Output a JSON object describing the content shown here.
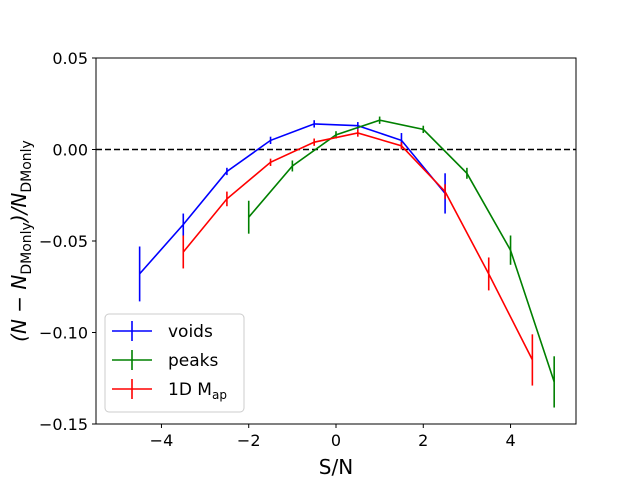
{
  "chart_data": {
    "type": "line",
    "title": "",
    "xlabel": "S/N",
    "ylabel": {
      "prefix": "(N − N",
      "sub1": "DMonly",
      "middle": ")/N",
      "sub2": "DMonly"
    },
    "xlim": [
      -5.5,
      5.5
    ],
    "ylim": [
      -0.15,
      0.05
    ],
    "xticks": [
      -4,
      -2,
      0,
      2,
      4
    ],
    "xtick_labels": [
      "−4",
      "−2",
      "0",
      "2",
      "4"
    ],
    "yticks": [
      0.05,
      0.0,
      -0.05,
      -0.1,
      -0.15
    ],
    "ytick_labels": [
      "0.05",
      "0.00",
      "−0.05",
      "−0.10",
      "−0.15"
    ],
    "reference_line": {
      "y": 0.0,
      "style": "dashed",
      "color": "#000000"
    },
    "legend_position": "lower-left",
    "series": [
      {
        "name": "voids",
        "color": "#0000ff",
        "x": [
          -4.5,
          -3.5,
          -2.5,
          -1.5,
          -0.5,
          0.5,
          1.5,
          2.5
        ],
        "y": [
          -0.068,
          -0.041,
          -0.012,
          0.005,
          0.014,
          0.013,
          0.005,
          -0.024
        ],
        "yerr": [
          0.015,
          0.006,
          0.002,
          0.002,
          0.002,
          0.002,
          0.004,
          0.011
        ]
      },
      {
        "name": "peaks",
        "color": "#008000",
        "x": [
          -2.0,
          -1.0,
          0.0,
          1.0,
          2.0,
          3.0,
          4.0,
          5.0
        ],
        "y": [
          -0.037,
          -0.009,
          0.008,
          0.016,
          0.011,
          -0.013,
          -0.055,
          -0.127
        ],
        "yerr": [
          0.009,
          0.003,
          0.002,
          0.002,
          0.002,
          0.003,
          0.008,
          0.014
        ]
      },
      {
        "name": "1D M",
        "name_sub": "ap",
        "color": "#ff0000",
        "x": [
          -3.5,
          -2.5,
          -1.5,
          -0.5,
          0.5,
          1.5,
          2.5,
          3.5,
          4.5
        ],
        "y": [
          -0.056,
          -0.027,
          -0.007,
          0.004,
          0.009,
          0.002,
          -0.023,
          -0.068,
          -0.115
        ],
        "yerr": [
          0.009,
          0.004,
          0.002,
          0.002,
          0.002,
          0.002,
          0.004,
          0.009,
          0.014
        ]
      }
    ]
  }
}
